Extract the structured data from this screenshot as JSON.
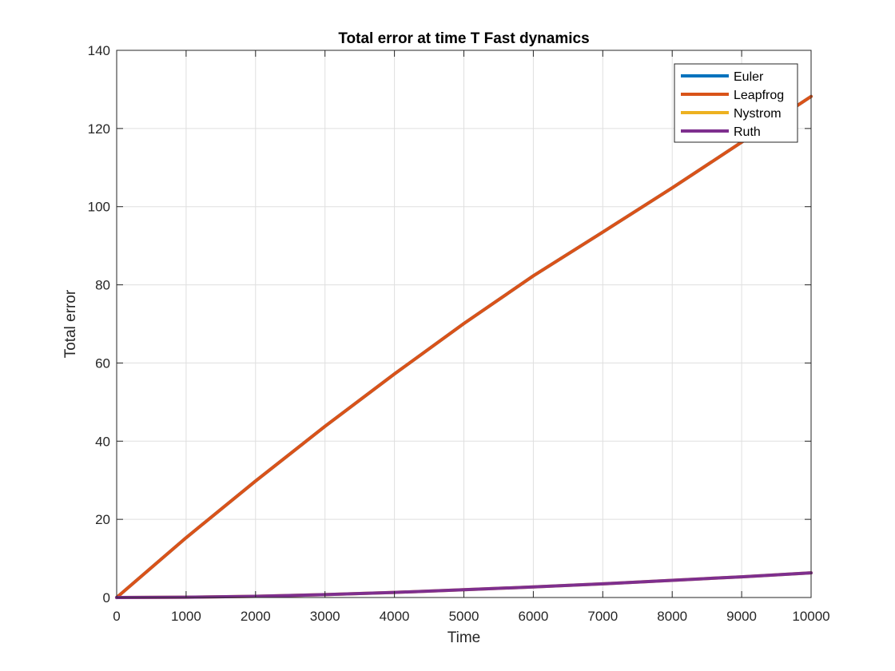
{
  "chart_data": {
    "type": "line",
    "title": "Total error at time T Fast dynamics",
    "xlabel": "Time",
    "ylabel": "Total error",
    "xlim": [
      0,
      10000
    ],
    "ylim": [
      0,
      140
    ],
    "xticks": [
      0,
      1000,
      2000,
      3000,
      4000,
      5000,
      6000,
      7000,
      8000,
      9000,
      10000
    ],
    "xtick_labels": [
      "0",
      "1000",
      "2000",
      "3000",
      "4000",
      "5000",
      "6000",
      "7000",
      "8000",
      "9000",
      "10000"
    ],
    "yticks": [
      0,
      20,
      40,
      60,
      80,
      100,
      120,
      140
    ],
    "ytick_labels": [
      "0",
      "20",
      "40",
      "60",
      "80",
      "100",
      "120",
      "140"
    ],
    "grid": true,
    "legend_position": "top-right",
    "x": [
      0,
      1000,
      2000,
      3000,
      4000,
      5000,
      6000,
      7000,
      8000,
      9000,
      10000
    ],
    "series": [
      {
        "name": "Euler",
        "color": "#0072BD",
        "values": [
          0,
          15.3,
          29.8,
          43.8,
          57.2,
          70.1,
          82.3,
          93.5,
          104.8,
          116.5,
          128.2
        ]
      },
      {
        "name": "Leapfrog",
        "color": "#D95319",
        "values": [
          0,
          15.3,
          29.8,
          43.8,
          57.2,
          70.1,
          82.3,
          93.5,
          104.8,
          116.5,
          128.2
        ]
      },
      {
        "name": "Nystrom",
        "color": "#EDB120",
        "values": [
          0,
          0.08,
          0.3,
          0.75,
          1.3,
          2.0,
          2.7,
          3.5,
          4.4,
          5.3,
          6.3
        ]
      },
      {
        "name": "Ruth",
        "color": "#7E2F8E",
        "values": [
          0,
          0.08,
          0.3,
          0.75,
          1.3,
          2.0,
          2.7,
          3.5,
          4.4,
          5.3,
          6.3
        ]
      }
    ]
  }
}
